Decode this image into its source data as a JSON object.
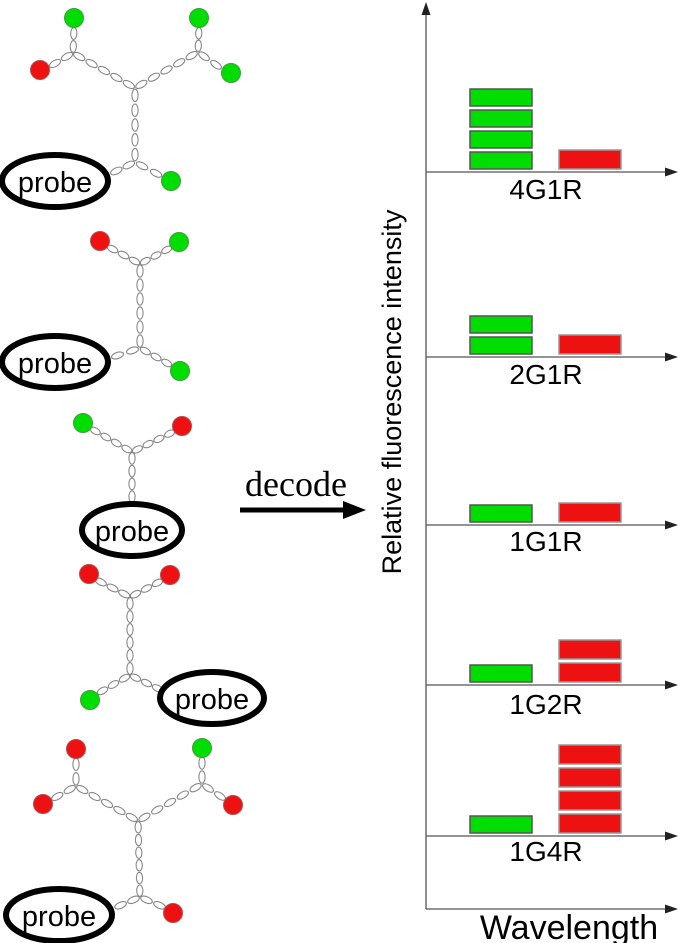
{
  "labels": {
    "decode": "decode",
    "y_axis": "Relative fluorescence intensity",
    "x_axis": "Wavelength"
  },
  "colors": {
    "green": "#00dd00",
    "red": "#ee1111",
    "chain_outline": "#888888",
    "axis": "#555555",
    "text": "#000000"
  },
  "structures": [
    {
      "code": "4G1R",
      "probe_label": "probe",
      "green_tags": 4,
      "red_tags": 1
    },
    {
      "code": "2G1R",
      "probe_label": "probe",
      "green_tags": 2,
      "red_tags": 1
    },
    {
      "code": "1G1R",
      "probe_label": "probe",
      "green_tags": 1,
      "red_tags": 1
    },
    {
      "code": "1G2R",
      "probe_label": "probe",
      "green_tags": 1,
      "red_tags": 2
    },
    {
      "code": "1G4R",
      "probe_label": "probe",
      "green_tags": 1,
      "red_tags": 4
    }
  ],
  "chart_data": {
    "type": "bar",
    "title": "",
    "ylabel": "Relative fluorescence intensity",
    "xlabel": "Wavelength",
    "categories": [
      "green",
      "red"
    ],
    "value_units": "stacked blocks of relative intensity",
    "grid": false,
    "legend": false,
    "panels": [
      {
        "label": "4G1R",
        "values": {
          "green": 4,
          "red": 1
        }
      },
      {
        "label": "2G1R",
        "values": {
          "green": 2,
          "red": 1
        }
      },
      {
        "label": "1G1R",
        "values": {
          "green": 1,
          "red": 1
        }
      },
      {
        "label": "1G2R",
        "values": {
          "green": 1,
          "red": 2
        }
      },
      {
        "label": "1G4R",
        "values": {
          "green": 1,
          "red": 4
        }
      }
    ]
  }
}
